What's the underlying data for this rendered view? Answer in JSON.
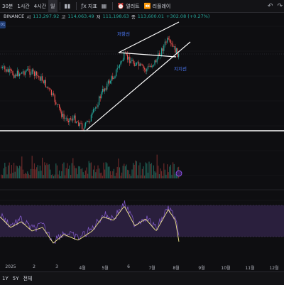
{
  "toolbar": {
    "timeframe_30m": "30분",
    "timeframe_1h": "1시간",
    "timeframe_4h": "4시간",
    "timeframe_selected": "일",
    "indicators": "지표",
    "alert": "얼러트",
    "replay": "리플레이"
  },
  "legend": {
    "symbol": "BINANCE",
    "open_label": "시",
    "open": "113,297.92",
    "high_label": "고",
    "high": "114,063.49",
    "low_label": "저",
    "low": "111,198.63",
    "close_label": "종",
    "close": "113,600.01",
    "change": "+302.08 (+0.27%)"
  },
  "annotations": {
    "resistance": "저항선",
    "support": "지지선"
  },
  "x_axis": [
    "2025",
    "2",
    "3",
    "4월",
    "5월",
    "6",
    "7월",
    "8월",
    "9월",
    "10월",
    "11월",
    "12월"
  ],
  "range_buttons": [
    "1Y",
    "5Y",
    "전체"
  ],
  "colors": {
    "up": "#26a69a",
    "down": "#ef5350",
    "trendline": "#ffffff",
    "annotation": "#4d7cff",
    "rsi_line": "#7e57c2",
    "rsi_ma": "#f0e68c",
    "rsi_band": "#2a1f3d"
  },
  "icons": {
    "candles": "candlestick-icon",
    "indicator": "fx-icon",
    "alert": "alarm-clock-icon",
    "replay": "rewind-icon"
  }
}
